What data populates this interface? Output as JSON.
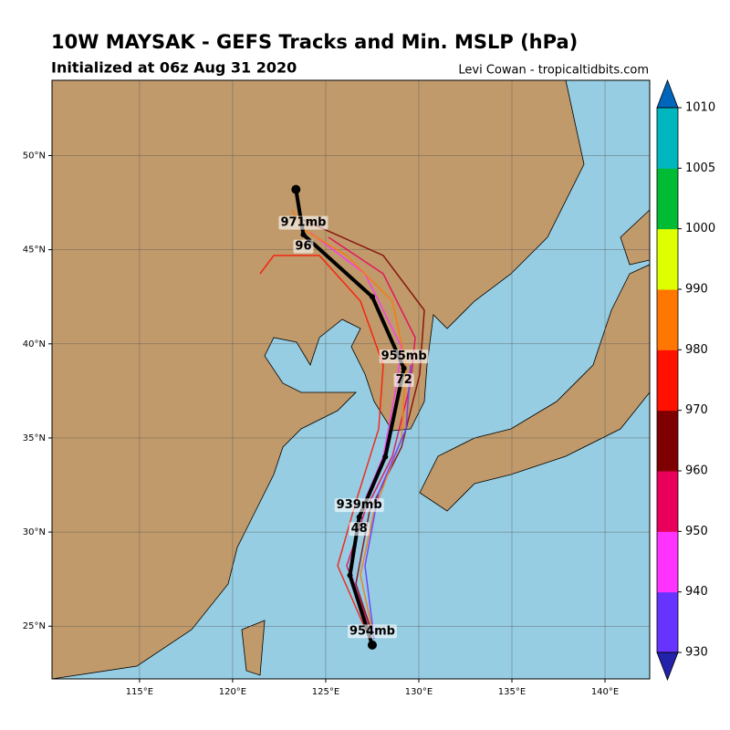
{
  "header": {
    "title": "10W MAYSAK - GEFS Tracks and Min. MSLP (hPa)",
    "subtitle": "Initialized at 06z Aug 31 2020",
    "credit": "Levi Cowan - tropicaltidbits.com"
  },
  "map": {
    "lonlim": [
      110.3,
      142.4
    ],
    "latlim": [
      22.2,
      54
    ],
    "lonticks": [
      {
        "value": 115,
        "label": "115°E"
      },
      {
        "value": 120,
        "label": "120°E"
      },
      {
        "value": 125,
        "label": "125°E"
      },
      {
        "value": 130,
        "label": "130°E"
      },
      {
        "value": 135,
        "label": "135°E"
      },
      {
        "value": 140,
        "label": "140°E"
      }
    ],
    "latticks": [
      {
        "value": 25,
        "label": "25°N"
      },
      {
        "value": 30,
        "label": "30°N"
      },
      {
        "value": 35,
        "label": "35°N"
      },
      {
        "value": 40,
        "label": "40°N"
      },
      {
        "value": 45,
        "label": "45°N"
      },
      {
        "value": 50,
        "label": "50°N"
      }
    ]
  },
  "track": {
    "color": "#000000",
    "points": [
      {
        "lon": 127.5,
        "lat": 24.0,
        "pressure": "954mb"
      },
      {
        "lon": 126.3,
        "lat": 27.7
      },
      {
        "lon": 126.8,
        "lat": 30.8,
        "hour": "48",
        "pressure": "939mb"
      },
      {
        "lon": 128.2,
        "lat": 34.0
      },
      {
        "lon": 129.2,
        "lat": 38.7,
        "hour": "72",
        "pressure": "955mb"
      },
      {
        "lon": 127.5,
        "lat": 42.5
      },
      {
        "lon": 123.8,
        "lat": 45.8,
        "hour": "96",
        "pressure": "971mb"
      },
      {
        "lon": 123.4,
        "lat": 48.2
      }
    ]
  },
  "colorbar": {
    "ticks": [
      930,
      940,
      950,
      960,
      970,
      980,
      990,
      1000,
      1005,
      1010
    ],
    "colors": [
      "#6633ff",
      "#ff33ff",
      "#e8005a",
      "#7f0000",
      "#ff1100",
      "#ff7700",
      "#ddff00",
      "#00bb33",
      "#00b7c0"
    ],
    "under": "#2222aa",
    "over": "#0066bb"
  }
}
